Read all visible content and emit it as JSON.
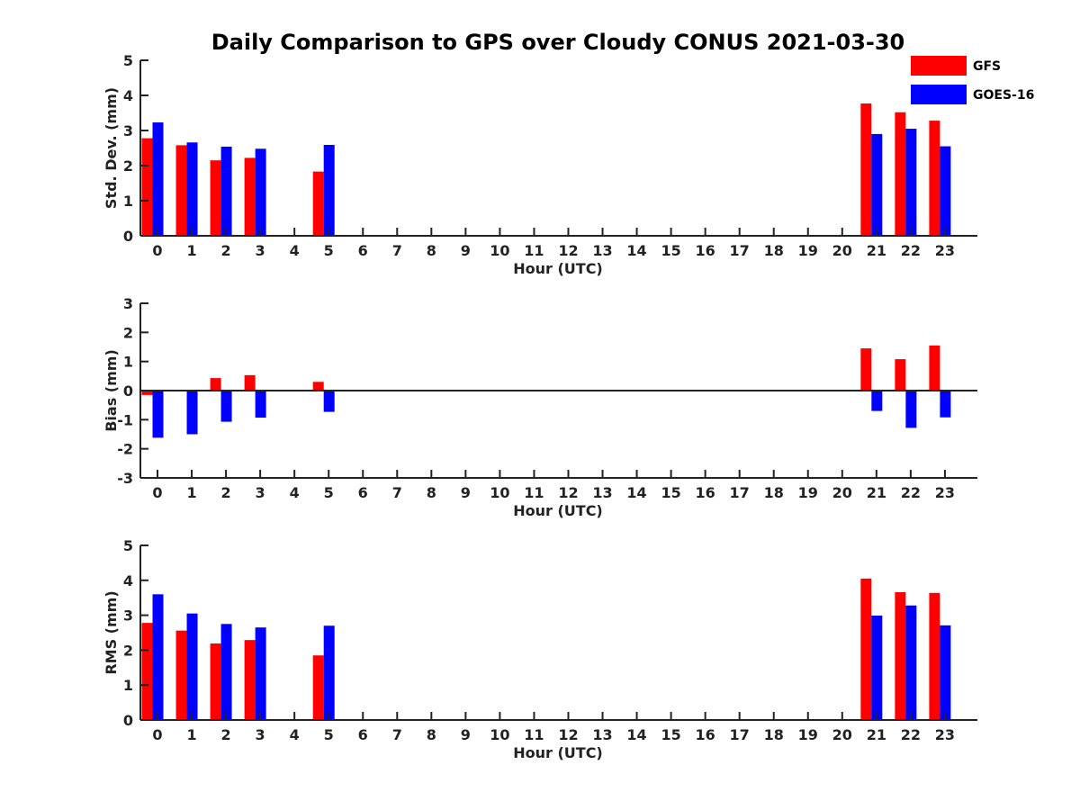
{
  "title": "Daily Comparison to GPS over Cloudy CONUS 2021-03-30",
  "legend": {
    "placement": "top-right",
    "entries": [
      {
        "name": "GFS",
        "color": "#ff0000"
      },
      {
        "name": "GOES-16",
        "color": "#0000ff"
      }
    ]
  },
  "chart_data": [
    {
      "type": "bar",
      "xlabel": "Hour (UTC)",
      "ylabel": "Std. Dev. (mm)",
      "ylim": [
        0,
        5
      ],
      "yticks": [
        "0",
        "1",
        "2",
        "3",
        "4",
        "5"
      ],
      "categories": [
        "0",
        "1",
        "2",
        "3",
        "4",
        "5",
        "6",
        "7",
        "8",
        "9",
        "10",
        "11",
        "12",
        "13",
        "14",
        "15",
        "16",
        "17",
        "18",
        "19",
        "20",
        "21",
        "22",
        "23"
      ],
      "series": [
        {
          "name": "GFS",
          "color": "#ff0000",
          "values": [
            2.78,
            2.58,
            2.15,
            2.22,
            null,
            1.83,
            null,
            null,
            null,
            null,
            null,
            null,
            null,
            null,
            null,
            null,
            null,
            null,
            null,
            null,
            null,
            3.77,
            3.52,
            3.28
          ]
        },
        {
          "name": "GOES-16",
          "color": "#0000ff",
          "values": [
            3.23,
            2.66,
            2.54,
            2.48,
            null,
            2.59,
            null,
            null,
            null,
            null,
            null,
            null,
            null,
            null,
            null,
            null,
            null,
            null,
            null,
            null,
            null,
            2.9,
            3.05,
            2.55
          ]
        }
      ]
    },
    {
      "type": "bar",
      "xlabel": "Hour (UTC)",
      "ylabel": "Bias (mm)",
      "ylim": [
        -3,
        3
      ],
      "yticks": [
        "-3",
        "-2",
        "-1",
        "0",
        "1",
        "2",
        "3"
      ],
      "categories": [
        "0",
        "1",
        "2",
        "3",
        "4",
        "5",
        "6",
        "7",
        "8",
        "9",
        "10",
        "11",
        "12",
        "13",
        "14",
        "15",
        "16",
        "17",
        "18",
        "19",
        "20",
        "21",
        "22",
        "23"
      ],
      "series": [
        {
          "name": "GFS",
          "color": "#ff0000",
          "values": [
            -0.15,
            null,
            0.43,
            0.53,
            null,
            0.3,
            null,
            null,
            null,
            null,
            null,
            null,
            null,
            null,
            null,
            null,
            null,
            null,
            null,
            null,
            null,
            1.45,
            1.08,
            1.55
          ]
        },
        {
          "name": "GOES-16",
          "color": "#0000ff",
          "values": [
            -1.62,
            -1.5,
            -1.07,
            -0.93,
            null,
            -0.73,
            null,
            null,
            null,
            null,
            null,
            null,
            null,
            null,
            null,
            null,
            null,
            null,
            null,
            null,
            null,
            -0.7,
            -1.28,
            -0.92
          ]
        }
      ]
    },
    {
      "type": "bar",
      "xlabel": "Hour (UTC)",
      "ylabel": "RMS (mm)",
      "ylim": [
        0,
        5
      ],
      "yticks": [
        "0",
        "1",
        "2",
        "3",
        "4",
        "5"
      ],
      "categories": [
        "0",
        "1",
        "2",
        "3",
        "4",
        "5",
        "6",
        "7",
        "8",
        "9",
        "10",
        "11",
        "12",
        "13",
        "14",
        "15",
        "16",
        "17",
        "18",
        "19",
        "20",
        "21",
        "22",
        "23"
      ],
      "series": [
        {
          "name": "GFS",
          "color": "#ff0000",
          "values": [
            2.78,
            2.56,
            2.19,
            2.29,
            null,
            1.85,
            null,
            null,
            null,
            null,
            null,
            null,
            null,
            null,
            null,
            null,
            null,
            null,
            null,
            null,
            null,
            4.05,
            3.66,
            3.64
          ]
        },
        {
          "name": "GOES-16",
          "color": "#0000ff",
          "values": [
            3.6,
            3.05,
            2.75,
            2.65,
            null,
            2.7,
            null,
            null,
            null,
            null,
            null,
            null,
            null,
            null,
            null,
            null,
            null,
            null,
            null,
            null,
            null,
            2.99,
            3.28,
            2.71
          ]
        }
      ]
    }
  ]
}
